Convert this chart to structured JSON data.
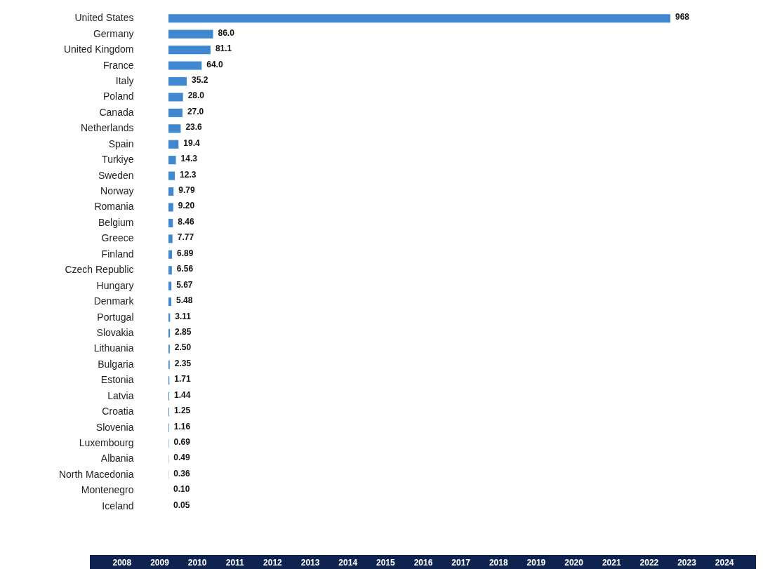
{
  "chart_data": {
    "type": "bar",
    "orientation": "horizontal",
    "color": "#3f88cf",
    "categories": [
      "United States",
      "Germany",
      "United Kingdom",
      "France",
      "Italy",
      "Poland",
      "Canada",
      "Netherlands",
      "Spain",
      "Turkiye",
      "Sweden",
      "Norway",
      "Romania",
      "Belgium",
      "Greece",
      "Finland",
      "Czech Republic",
      "Hungary",
      "Denmark",
      "Portugal",
      "Slovakia",
      "Lithuania",
      "Bulgaria",
      "Estonia",
      "Latvia",
      "Croatia",
      "Slovenia",
      "Luxembourg",
      "Albania",
      "North Macedonia",
      "Montenegro",
      "Iceland"
    ],
    "values": [
      968,
      86.0,
      81.1,
      64.0,
      35.2,
      28.0,
      27.0,
      23.6,
      19.4,
      14.3,
      12.3,
      9.79,
      9.2,
      8.46,
      7.77,
      6.89,
      6.56,
      5.67,
      5.48,
      3.11,
      2.85,
      2.5,
      2.35,
      1.71,
      1.44,
      1.25,
      1.16,
      0.69,
      0.49,
      0.36,
      0.1,
      0.05
    ],
    "value_labels": [
      "968",
      "86.0",
      "81.1",
      "64.0",
      "35.2",
      "28.0",
      "27.0",
      "23.6",
      "19.4",
      "14.3",
      "12.3",
      "9.79",
      "9.20",
      "8.46",
      "7.77",
      "6.89",
      "6.56",
      "5.67",
      "5.48",
      "3.11",
      "2.85",
      "2.50",
      "2.35",
      "1.71",
      "1.44",
      "1.25",
      "1.16",
      "0.69",
      "0.49",
      "0.36",
      "0.10",
      "0.05"
    ],
    "annotations": [
      "2008",
      "2009",
      "2010",
      "2011",
      "2012",
      "2013",
      "2014",
      "2015",
      "2016",
      "2017",
      "2018",
      "2019",
      "2020",
      "2021",
      "2022",
      "2023",
      "2024"
    ]
  }
}
